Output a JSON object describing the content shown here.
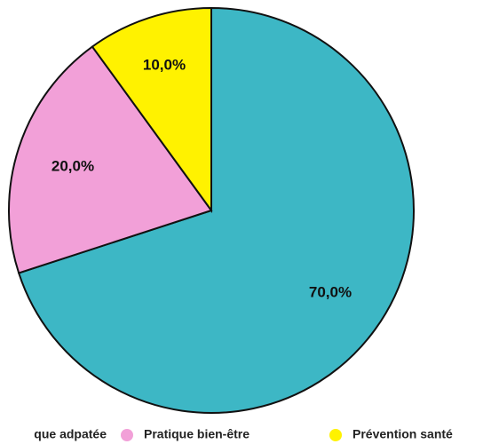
{
  "chart_data": {
    "type": "pie",
    "categories": [
      "que adpatée",
      "Pratique bien-être",
      "Prévention santé"
    ],
    "values": [
      70,
      20,
      10
    ],
    "value_labels": [
      "70,0%",
      "20,0%",
      "10,0%"
    ],
    "colors": [
      "#3db7c5",
      "#f2a0d8",
      "#fff200"
    ]
  }
}
